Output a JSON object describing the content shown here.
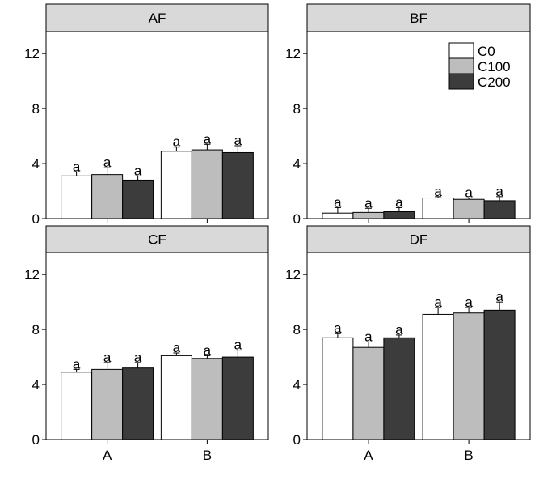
{
  "colors": {
    "C0": "#ffffff",
    "C100": "#bdbdbd",
    "C200": "#3c3c3c",
    "strip": "#d9d9d9",
    "frame": "#000000"
  },
  "chart_data": {
    "type": "bar",
    "categories": [
      "A",
      "B"
    ],
    "ylim": [
      0,
      13.6
    ],
    "yticks": [
      "0",
      "4",
      "8",
      "12"
    ],
    "legend": {
      "placement": "top-right",
      "panel": "BF",
      "entries": [
        "C0",
        "C100",
        "C200"
      ]
    },
    "grid": false,
    "panels": [
      {
        "title": "AF",
        "series": [
          {
            "name": "C0",
            "values": [
              3.1,
              4.9
            ],
            "errors": [
              0.3,
              0.3
            ],
            "labels": [
              "a",
              "a"
            ]
          },
          {
            "name": "C100",
            "values": [
              3.2,
              5.0
            ],
            "errors": [
              0.5,
              0.4
            ],
            "labels": [
              "a",
              "a"
            ]
          },
          {
            "name": "C200",
            "values": [
              2.8,
              4.8
            ],
            "errors": [
              0.3,
              0.5
            ],
            "labels": [
              "a",
              "a"
            ]
          }
        ]
      },
      {
        "title": "BF",
        "series": [
          {
            "name": "C0",
            "values": [
              0.4,
              1.5
            ],
            "errors": [
              0.4,
              0.1
            ],
            "labels": [
              "a",
              "a"
            ]
          },
          {
            "name": "C100",
            "values": [
              0.45,
              1.4
            ],
            "errors": [
              0.3,
              0.1
            ],
            "labels": [
              "a",
              "a"
            ]
          },
          {
            "name": "C200",
            "values": [
              0.5,
              1.3
            ],
            "errors": [
              0.3,
              0.3
            ],
            "labels": [
              "a",
              "a"
            ]
          }
        ]
      },
      {
        "title": "CF",
        "series": [
          {
            "name": "C0",
            "values": [
              4.9,
              6.1
            ],
            "errors": [
              0.2,
              0.2
            ],
            "labels": [
              "a",
              "a"
            ]
          },
          {
            "name": "C100",
            "values": [
              5.1,
              5.9
            ],
            "errors": [
              0.5,
              0.2
            ],
            "labels": [
              "a",
              "a"
            ]
          },
          {
            "name": "C200",
            "values": [
              5.2,
              6.0
            ],
            "errors": [
              0.4,
              0.5
            ],
            "labels": [
              "a",
              "a"
            ]
          }
        ]
      },
      {
        "title": "DF",
        "series": [
          {
            "name": "C0",
            "values": [
              7.4,
              9.1
            ],
            "errors": [
              0.3,
              0.5
            ],
            "labels": [
              "a",
              "a"
            ]
          },
          {
            "name": "C100",
            "values": [
              6.7,
              9.2
            ],
            "errors": [
              0.4,
              0.4
            ],
            "labels": [
              "a",
              "a"
            ]
          },
          {
            "name": "C200",
            "values": [
              7.4,
              9.4
            ],
            "errors": [
              0.2,
              0.6
            ],
            "labels": [
              "a",
              "a"
            ]
          }
        ]
      }
    ]
  }
}
